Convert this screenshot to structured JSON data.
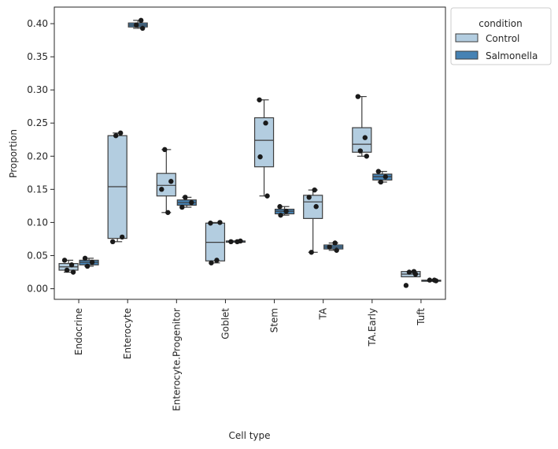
{
  "chart_data": {
    "type": "box",
    "title": "",
    "xlabel": "Cell type",
    "ylabel": "Proportion",
    "ylim": [
      -0.016,
      0.425
    ],
    "yticks": [
      "0.00",
      "0.05",
      "0.10",
      "0.15",
      "0.20",
      "0.25",
      "0.30",
      "0.35",
      "0.40"
    ],
    "categories": [
      "Endocrine",
      "Enterocyte",
      "Enterocyte.Progenitor",
      "Goblet",
      "Stem",
      "TA",
      "TA.Early",
      "Tuft"
    ],
    "legend": {
      "title": "condition",
      "placement": "outside-top-right",
      "entries": [
        "Control",
        "Salmonella"
      ]
    },
    "colors": {
      "Control": "#b3cde0",
      "Salmonella": "#4682b4",
      "box_edge": "#3d3d3d",
      "point": "#1a1a1a"
    },
    "series": [
      {
        "name": "Control",
        "groups": [
          {
            "category": "Endocrine",
            "q1": 0.028,
            "median": 0.033,
            "q3": 0.038,
            "whisker_low": 0.025,
            "whisker_high": 0.043,
            "points": [
              0.043,
              0.036,
              0.028,
              0.025
            ]
          },
          {
            "category": "Enterocyte",
            "q1": 0.076,
            "median": 0.154,
            "q3": 0.231,
            "whisker_low": 0.071,
            "whisker_high": 0.235,
            "points": [
              0.235,
              0.231,
              0.078,
              0.071
            ]
          },
          {
            "category": "Enterocyte.Progenitor",
            "q1": 0.14,
            "median": 0.156,
            "q3": 0.174,
            "whisker_low": 0.115,
            "whisker_high": 0.21,
            "points": [
              0.21,
              0.162,
              0.15,
              0.115
            ]
          },
          {
            "category": "Goblet",
            "q1": 0.042,
            "median": 0.07,
            "q3": 0.099,
            "whisker_low": 0.039,
            "whisker_high": 0.1,
            "points": [
              0.1,
              0.099,
              0.043,
              0.039
            ]
          },
          {
            "category": "Stem",
            "q1": 0.184,
            "median": 0.224,
            "q3": 0.258,
            "whisker_low": 0.14,
            "whisker_high": 0.285,
            "points": [
              0.285,
              0.25,
              0.199,
              0.14
            ]
          },
          {
            "category": "TA",
            "q1": 0.106,
            "median": 0.131,
            "q3": 0.141,
            "whisker_low": 0.055,
            "whisker_high": 0.149,
            "points": [
              0.149,
              0.138,
              0.124,
              0.055
            ]
          },
          {
            "category": "TA.Early",
            "q1": 0.206,
            "median": 0.218,
            "q3": 0.243,
            "whisker_low": 0.2,
            "whisker_high": 0.29,
            "points": [
              0.29,
              0.228,
              0.208,
              0.2
            ]
          },
          {
            "category": "Tuft",
            "q1": 0.018,
            "median": 0.022,
            "q3": 0.026,
            "whisker_low": 0.018,
            "whisker_high": 0.026,
            "points": [
              0.026,
              0.025,
              0.022,
              0.005
            ]
          }
        ]
      },
      {
        "name": "Salmonella",
        "groups": [
          {
            "category": "Endocrine",
            "q1": 0.036,
            "median": 0.04,
            "q3": 0.043,
            "whisker_low": 0.034,
            "whisker_high": 0.046,
            "points": [
              0.046,
              0.04,
              0.034
            ]
          },
          {
            "category": "Enterocyte",
            "q1": 0.395,
            "median": 0.398,
            "q3": 0.401,
            "whisker_low": 0.393,
            "whisker_high": 0.405,
            "points": [
              0.405,
              0.398,
              0.393
            ]
          },
          {
            "category": "Enterocyte.Progenitor",
            "q1": 0.126,
            "median": 0.13,
            "q3": 0.134,
            "whisker_low": 0.123,
            "whisker_high": 0.138,
            "points": [
              0.138,
              0.13,
              0.123
            ]
          },
          {
            "category": "Goblet",
            "q1": 0.071,
            "median": 0.072,
            "q3": 0.072,
            "whisker_low": 0.071,
            "whisker_high": 0.072,
            "points": [
              0.072,
              0.071,
              0.071
            ]
          },
          {
            "category": "Stem",
            "q1": 0.113,
            "median": 0.117,
            "q3": 0.12,
            "whisker_low": 0.111,
            "whisker_high": 0.124,
            "points": [
              0.124,
              0.117,
              0.111
            ]
          },
          {
            "category": "TA",
            "q1": 0.06,
            "median": 0.063,
            "q3": 0.066,
            "whisker_low": 0.058,
            "whisker_high": 0.069,
            "points": [
              0.069,
              0.063,
              0.058
            ]
          },
          {
            "category": "TA.Early",
            "q1": 0.164,
            "median": 0.169,
            "q3": 0.173,
            "whisker_low": 0.161,
            "whisker_high": 0.177,
            "points": [
              0.177,
              0.169,
              0.161
            ]
          },
          {
            "category": "Tuft",
            "q1": 0.012,
            "median": 0.013,
            "q3": 0.013,
            "whisker_low": 0.012,
            "whisker_high": 0.013,
            "points": [
              0.013,
              0.013,
              0.012
            ]
          }
        ]
      }
    ]
  }
}
